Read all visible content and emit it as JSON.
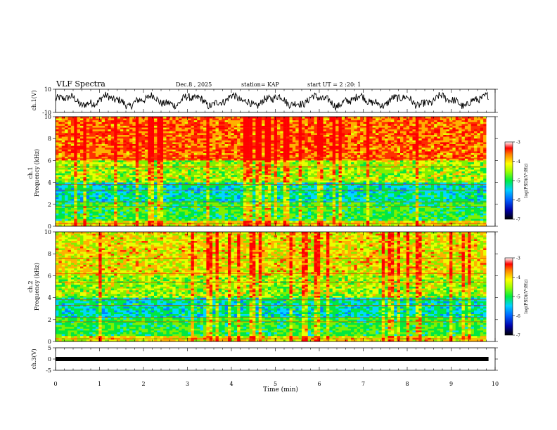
{
  "header": {
    "title": "VLF Spectra",
    "date": "Dec.8 , 2025",
    "station": "station= KAP",
    "start_ut": "start UT = 2 :20: 1"
  },
  "chart_data": [
    {
      "type": "line",
      "name": "ch1-waveform",
      "ylabel": "ch.1(V)",
      "ylim": [
        -10,
        10
      ],
      "yticks": [
        -10,
        10
      ],
      "xlim": [
        0,
        10
      ]
    },
    {
      "type": "heatmap",
      "name": "ch1-spectrogram",
      "ylabel": "ch.1\nFrequency (kHz)",
      "ylim": [
        0,
        10
      ],
      "yticks": [
        0,
        2,
        4,
        6,
        8,
        10
      ],
      "xlim": [
        0,
        10
      ],
      "data_extent_min": 9.8,
      "colorbar": {
        "label": "log(PSD)(V²/Hz)",
        "range": [
          -7,
          -3
        ],
        "ticks": [
          -7,
          -6,
          -5,
          -4,
          -3
        ]
      }
    },
    {
      "type": "heatmap",
      "name": "ch2-spectrogram",
      "ylabel": "ch.2\nFrequency (kHz)",
      "ylim": [
        0,
        10
      ],
      "yticks": [
        0,
        2,
        4,
        6,
        8,
        10
      ],
      "xlim": [
        0,
        10
      ],
      "data_extent_min": 9.8,
      "colorbar": {
        "label": "log(PSD)(V²/Hz)",
        "range": [
          -7,
          -3
        ],
        "ticks": [
          -7,
          -6,
          -5,
          -4,
          -3
        ]
      }
    },
    {
      "type": "line",
      "name": "ch3-waveform",
      "ylabel": "ch.3(V)",
      "ylim": [
        -5,
        5
      ],
      "yticks": [
        -5,
        0,
        5
      ],
      "xlim": [
        0,
        10
      ]
    }
  ],
  "xaxis": {
    "label": "Time (min)",
    "ticks": [
      "0",
      "1",
      "2",
      "3",
      "4",
      "5",
      "6",
      "7",
      "8",
      "9",
      "10"
    ]
  },
  "labels": {
    "ch1_ylabel": "ch.1(V)",
    "ch1_spec_line1": "ch.1",
    "ch1_spec_line2": "Frequency (kHz)",
    "ch2_spec_line1": "ch.2",
    "ch2_spec_line2": "Frequency (kHz)",
    "ch3_ylabel": "ch.3(V)",
    "colorbar_label": "log(PSD)(V²/Hz)"
  },
  "colors": {
    "axis": "#000000",
    "trace": "#000000"
  }
}
